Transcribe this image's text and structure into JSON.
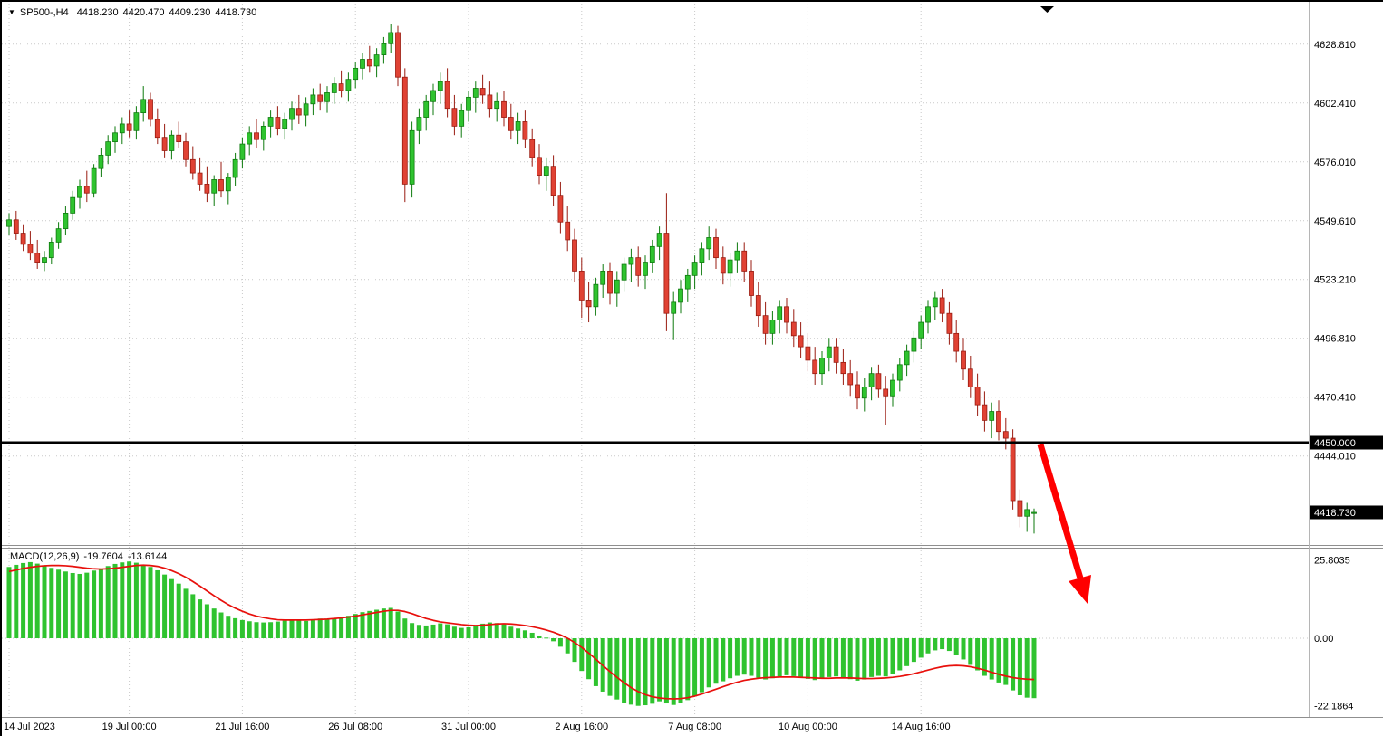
{
  "header": {
    "title": "SP500-,H4",
    "open": "4418.230",
    "high": "4420.470",
    "low": "4409.230",
    "close": "4418.730"
  },
  "macd": {
    "name": "MACD(12,26,9)",
    "value": "-19.7604",
    "signal_value": "-13.6144"
  },
  "colors": {
    "bull": "#2fc32f",
    "bull_border": "#0e7a0e",
    "bear": "#e04234",
    "bear_border": "#991b10",
    "hist": "#2fc32f",
    "signal_line": "#e8100c",
    "hline": "#000000",
    "grid": "#c9c9c9",
    "badge_bg": "#000000",
    "badge_text": "#ffffff",
    "arrow": "#ff0000",
    "text": "#000000",
    "panel_border": "#8f8f8f"
  },
  "chart_data": {
    "type": "candlestick",
    "title": "SP500-,H4",
    "symbol": "SP500-",
    "timeframe": "H4",
    "last_bar": {
      "open": 4418.23,
      "high": 4420.47,
      "low": 4409.23,
      "close": 4418.73
    },
    "y_axis": {
      "ticks": [
        {
          "label": "4628.810",
          "value": 4628.81
        },
        {
          "label": "4602.410",
          "value": 4602.41
        },
        {
          "label": "4576.010",
          "value": 4576.01
        },
        {
          "label": "4549.610",
          "value": 4549.61
        },
        {
          "label": "4523.210",
          "value": 4523.21
        },
        {
          "label": "4496.810",
          "value": 4496.81
        },
        {
          "label": "4470.410",
          "value": 4470.41
        },
        {
          "label": "4444.010",
          "value": 4444.01
        }
      ],
      "badges": [
        {
          "label": "4450.000",
          "value": 4450.0
        },
        {
          "label": "4418.730",
          "value": 4418.73
        }
      ],
      "hline_value": 4450.0
    },
    "x_axis": {
      "labels": [
        {
          "label": "14 Jul 2023",
          "bar": 0
        },
        {
          "label": "19 Jul 00:00",
          "bar": 17
        },
        {
          "label": "21 Jul 16:00",
          "bar": 33
        },
        {
          "label": "26 Jul 08:00",
          "bar": 49
        },
        {
          "label": "31 Jul 00:00",
          "bar": 65
        },
        {
          "label": "2 Aug 16:00",
          "bar": 81
        },
        {
          "label": "7 Aug 08:00",
          "bar": 97
        },
        {
          "label": "10 Aug 00:00",
          "bar": 113
        },
        {
          "label": "14 Aug 16:00",
          "bar": 129
        }
      ]
    },
    "candles": [
      [
        4547,
        4553,
        4543,
        4550
      ],
      [
        4550,
        4554,
        4541,
        4544
      ],
      [
        4544,
        4548,
        4536,
        4539
      ],
      [
        4539,
        4545,
        4532,
        4535
      ],
      [
        4535,
        4541,
        4528,
        4531
      ],
      [
        4531,
        4536,
        4527,
        4533
      ],
      [
        4533,
        4542,
        4530,
        4540
      ],
      [
        4540,
        4549,
        4537,
        4546
      ],
      [
        4546,
        4556,
        4543,
        4553
      ],
      [
        4553,
        4563,
        4550,
        4560
      ],
      [
        4560,
        4568,
        4555,
        4565
      ],
      [
        4565,
        4572,
        4558,
        4562
      ],
      [
        4562,
        4575,
        4560,
        4573
      ],
      [
        4573,
        4582,
        4569,
        4579
      ],
      [
        4579,
        4588,
        4575,
        4585
      ],
      [
        4585,
        4592,
        4580,
        4589
      ],
      [
        4589,
        4596,
        4584,
        4593
      ],
      [
        4593,
        4599,
        4587,
        4590
      ],
      [
        4590,
        4601,
        4586,
        4598
      ],
      [
        4598,
        4610,
        4594,
        4604
      ],
      [
        4604,
        4607,
        4592,
        4595
      ],
      [
        4595,
        4600,
        4584,
        4587
      ],
      [
        4587,
        4593,
        4578,
        4581
      ],
      [
        4581,
        4590,
        4577,
        4588
      ],
      [
        4588,
        4594,
        4582,
        4585
      ],
      [
        4585,
        4589,
        4574,
        4577
      ],
      [
        4577,
        4583,
        4568,
        4571
      ],
      [
        4571,
        4578,
        4563,
        4566
      ],
      [
        4566,
        4574,
        4558,
        4562
      ],
      [
        4562,
        4570,
        4556,
        4568
      ],
      [
        4568,
        4576,
        4560,
        4563
      ],
      [
        4563,
        4571,
        4557,
        4569
      ],
      [
        4569,
        4580,
        4565,
        4577
      ],
      [
        4577,
        4587,
        4573,
        4584
      ],
      [
        4584,
        4592,
        4579,
        4589
      ],
      [
        4589,
        4595,
        4582,
        4586
      ],
      [
        4586,
        4594,
        4581,
        4592
      ],
      [
        4592,
        4599,
        4587,
        4596
      ],
      [
        4596,
        4601,
        4588,
        4591
      ],
      [
        4591,
        4598,
        4586,
        4595
      ],
      [
        4595,
        4603,
        4590,
        4600
      ],
      [
        4600,
        4606,
        4593,
        4597
      ],
      [
        4597,
        4605,
        4592,
        4602
      ],
      [
        4602,
        4609,
        4597,
        4606
      ],
      [
        4606,
        4611,
        4599,
        4603
      ],
      [
        4603,
        4610,
        4598,
        4607
      ],
      [
        4607,
        4614,
        4602,
        4611
      ],
      [
        4611,
        4617,
        4605,
        4608
      ],
      [
        4608,
        4616,
        4603,
        4613
      ],
      [
        4613,
        4621,
        4609,
        4618
      ],
      [
        4618,
        4625,
        4613,
        4622
      ],
      [
        4622,
        4628,
        4616,
        4619
      ],
      [
        4619,
        4627,
        4614,
        4624
      ],
      [
        4624,
        4632,
        4620,
        4629
      ],
      [
        4629,
        4638,
        4625,
        4634
      ],
      [
        4634,
        4637,
        4610,
        4614
      ],
      [
        4614,
        4618,
        4558,
        4566
      ],
      [
        4566,
        4594,
        4560,
        4590
      ],
      [
        4590,
        4600,
        4584,
        4596
      ],
      [
        4596,
        4606,
        4590,
        4603
      ],
      [
        4603,
        4611,
        4597,
        4608
      ],
      [
        4608,
        4616,
        4602,
        4612
      ],
      [
        4612,
        4618,
        4596,
        4600
      ],
      [
        4600,
        4606,
        4588,
        4592
      ],
      [
        4592,
        4602,
        4587,
        4599
      ],
      [
        4599,
        4608,
        4594,
        4605
      ],
      [
        4605,
        4612,
        4598,
        4609
      ],
      [
        4609,
        4615,
        4602,
        4606
      ],
      [
        4606,
        4612,
        4596,
        4600
      ],
      [
        4600,
        4607,
        4594,
        4603
      ],
      [
        4603,
        4608,
        4592,
        4596
      ],
      [
        4596,
        4602,
        4586,
        4590
      ],
      [
        4590,
        4598,
        4584,
        4594
      ],
      [
        4594,
        4599,
        4582,
        4586
      ],
      [
        4586,
        4591,
        4574,
        4578
      ],
      [
        4578,
        4584,
        4566,
        4570
      ],
      [
        4570,
        4578,
        4563,
        4574
      ],
      [
        4574,
        4579,
        4556,
        4561
      ],
      [
        4561,
        4567,
        4544,
        4549
      ],
      [
        4549,
        4556,
        4536,
        4541
      ],
      [
        4541,
        4546,
        4522,
        4527
      ],
      [
        4527,
        4533,
        4506,
        4514
      ],
      [
        4514,
        4522,
        4504,
        4511
      ],
      [
        4511,
        4524,
        4507,
        4521
      ],
      [
        4521,
        4530,
        4515,
        4527
      ],
      [
        4527,
        4531,
        4512,
        4517
      ],
      [
        4517,
        4527,
        4511,
        4523
      ],
      [
        4523,
        4533,
        4518,
        4530
      ],
      [
        4530,
        4537,
        4522,
        4533
      ],
      [
        4533,
        4538,
        4520,
        4525
      ],
      [
        4525,
        4534,
        4519,
        4531
      ],
      [
        4531,
        4541,
        4526,
        4538
      ],
      [
        4538,
        4547,
        4532,
        4544
      ],
      [
        4544,
        4562,
        4500,
        4508
      ],
      [
        4508,
        4518,
        4496,
        4513
      ],
      [
        4513,
        4523,
        4508,
        4519
      ],
      [
        4519,
        4528,
        4513,
        4525
      ],
      [
        4525,
        4534,
        4519,
        4531
      ],
      [
        4531,
        4540,
        4525,
        4537
      ],
      [
        4537,
        4547,
        4532,
        4542
      ],
      [
        4542,
        4546,
        4528,
        4533
      ],
      [
        4533,
        4538,
        4521,
        4526
      ],
      [
        4526,
        4535,
        4520,
        4532
      ],
      [
        4532,
        4540,
        4526,
        4536
      ],
      [
        4536,
        4540,
        4522,
        4527
      ],
      [
        4527,
        4532,
        4511,
        4516
      ],
      [
        4516,
        4522,
        4502,
        4507
      ],
      [
        4507,
        4513,
        4494,
        4499
      ],
      [
        4499,
        4509,
        4494,
        4505
      ],
      [
        4505,
        4514,
        4499,
        4511
      ],
      [
        4511,
        4515,
        4499,
        4504
      ],
      [
        4504,
        4510,
        4493,
        4498
      ],
      [
        4498,
        4504,
        4488,
        4493
      ],
      [
        4493,
        4499,
        4482,
        4487
      ],
      [
        4487,
        4493,
        4476,
        4481
      ],
      [
        4481,
        4491,
        4476,
        4488
      ],
      [
        4488,
        4497,
        4482,
        4493
      ],
      [
        4493,
        4497,
        4481,
        4486
      ],
      [
        4486,
        4492,
        4476,
        4481
      ],
      [
        4481,
        4487,
        4471,
        4476
      ],
      [
        4476,
        4482,
        4465,
        4470
      ],
      [
        4470,
        4479,
        4464,
        4475
      ],
      [
        4475,
        4484,
        4469,
        4481
      ],
      [
        4481,
        4485,
        4470,
        4474
      ],
      [
        4474,
        4480,
        4458,
        4471
      ],
      [
        4471,
        4481,
        4466,
        4478
      ],
      [
        4478,
        4488,
        4473,
        4485
      ],
      [
        4485,
        4494,
        4480,
        4491
      ],
      [
        4491,
        4500,
        4486,
        4497
      ],
      [
        4497,
        4507,
        4492,
        4504
      ],
      [
        4504,
        4514,
        4499,
        4511
      ],
      [
        4511,
        4518,
        4505,
        4515
      ],
      [
        4515,
        4519,
        4504,
        4508
      ],
      [
        4508,
        4513,
        4494,
        4499
      ],
      [
        4499,
        4505,
        4486,
        4491
      ],
      [
        4491,
        4497,
        4478,
        4483
      ],
      [
        4483,
        4489,
        4470,
        4475
      ],
      [
        4475,
        4481,
        4462,
        4467
      ],
      [
        4467,
        4473,
        4455,
        4460
      ],
      [
        4460,
        4468,
        4452,
        4464
      ],
      [
        4464,
        4469,
        4451,
        4455
      ],
      [
        4455,
        4461,
        4447,
        4452
      ],
      [
        4452,
        4456,
        4420,
        4424
      ],
      [
        4424,
        4429,
        4412,
        4417
      ],
      [
        4417,
        4423,
        4410,
        4420
      ],
      [
        4418.23,
        4420.47,
        4409.23,
        4418.73
      ]
    ],
    "indicator": {
      "name": "MACD(12,26,9)",
      "macd_value": -19.7604,
      "signal_value": -13.6144,
      "ticks": [
        {
          "label": "25.8035",
          "value": 25.8035
        },
        {
          "label": "0.00",
          "value": 0
        },
        {
          "label": "-22.1864",
          "value": -22.1864
        }
      ],
      "histogram": [
        23.5,
        24.2,
        24.8,
        25.1,
        24.6,
        23.8,
        23.2,
        22.6,
        22.0,
        21.5,
        21.2,
        21.6,
        22.3,
        23.0,
        23.8,
        24.5,
        25.0,
        25.3,
        24.9,
        24.3,
        23.5,
        22.4,
        21.0,
        19.5,
        18.0,
        16.3,
        14.5,
        12.8,
        11.2,
        9.8,
        8.5,
        7.4,
        6.6,
        6.0,
        5.6,
        5.3,
        5.2,
        5.3,
        5.5,
        5.8,
        6.2,
        6.0,
        5.7,
        6.1,
        6.5,
        6.3,
        6.6,
        7.0,
        7.4,
        8.0,
        8.6,
        9.0,
        9.4,
        9.8,
        10.0,
        8.8,
        6.5,
        5.0,
        4.4,
        4.2,
        4.5,
        4.9,
        4.6,
        3.8,
        3.4,
        3.6,
        4.2,
        4.8,
        5.2,
        5.0,
        4.6,
        3.8,
        3.2,
        2.6,
        1.8,
        0.9,
        0.2,
        -1.0,
        -2.8,
        -5.0,
        -7.8,
        -10.8,
        -13.5,
        -15.8,
        -17.6,
        -19.0,
        -20.2,
        -21.2,
        -21.9,
        -22.3,
        -22.1,
        -21.6,
        -20.8,
        -21.5,
        -22.0,
        -21.4,
        -20.4,
        -19.2,
        -17.8,
        -16.2,
        -15.0,
        -14.2,
        -13.2,
        -12.4,
        -12.0,
        -12.4,
        -13.0,
        -13.6,
        -13.2,
        -12.6,
        -12.2,
        -12.5,
        -13.0,
        -13.4,
        -13.8,
        -13.4,
        -12.8,
        -12.6,
        -13.0,
        -13.5,
        -14.0,
        -13.6,
        -12.8,
        -12.4,
        -12.6,
        -11.8,
        -10.6,
        -9.2,
        -7.8,
        -6.4,
        -5.0,
        -4.0,
        -3.6,
        -4.2,
        -5.4,
        -7.0,
        -8.8,
        -10.6,
        -12.4,
        -13.6,
        -14.6,
        -15.4,
        -17.2,
        -18.8,
        -19.6,
        -19.7604
      ],
      "signal": [
        22.0,
        22.5,
        23.0,
        23.4,
        23.7,
        23.9,
        24.0,
        24.0,
        23.9,
        23.7,
        23.4,
        23.1,
        22.9,
        22.8,
        22.9,
        23.1,
        23.4,
        23.7,
        24.0,
        24.1,
        24.0,
        23.7,
        23.1,
        22.3,
        21.3,
        20.1,
        18.7,
        17.2,
        15.6,
        14.0,
        12.5,
        11.1,
        9.9,
        8.9,
        8.0,
        7.3,
        6.8,
        6.4,
        6.1,
        6.0,
        6.0,
        6.0,
        6.0,
        6.1,
        6.2,
        6.3,
        6.5,
        6.7,
        7.0,
        7.3,
        7.7,
        8.1,
        8.5,
        8.9,
        9.2,
        9.2,
        8.8,
        8.1,
        7.3,
        6.5,
        5.9,
        5.4,
        5.1,
        4.8,
        4.5,
        4.3,
        4.2,
        4.3,
        4.5,
        4.7,
        4.8,
        4.7,
        4.5,
        4.2,
        3.8,
        3.3,
        2.7,
        2.0,
        1.1,
        0.0,
        -1.4,
        -3.0,
        -4.9,
        -6.9,
        -9.0,
        -11.0,
        -12.9,
        -14.7,
        -16.3,
        -17.6,
        -18.6,
        -19.3,
        -19.7,
        -19.9,
        -20.0,
        -19.9,
        -19.6,
        -19.1,
        -18.4,
        -17.6,
        -16.8,
        -16.0,
        -15.2,
        -14.5,
        -13.9,
        -13.5,
        -13.2,
        -13.0,
        -12.9,
        -12.8,
        -12.8,
        -12.8,
        -12.9,
        -13.0,
        -13.1,
        -13.2,
        -13.2,
        -13.1,
        -13.1,
        -13.1,
        -13.2,
        -13.3,
        -13.3,
        -13.2,
        -13.1,
        -12.9,
        -12.6,
        -12.2,
        -11.7,
        -11.1,
        -10.5,
        -9.9,
        -9.4,
        -9.1,
        -9.0,
        -9.1,
        -9.4,
        -9.9,
        -10.5,
        -11.2,
        -11.9,
        -12.5,
        -13.0,
        -13.3,
        -13.5,
        -13.6144
      ]
    },
    "annotation": {
      "type": "arrow-down-right"
    }
  }
}
